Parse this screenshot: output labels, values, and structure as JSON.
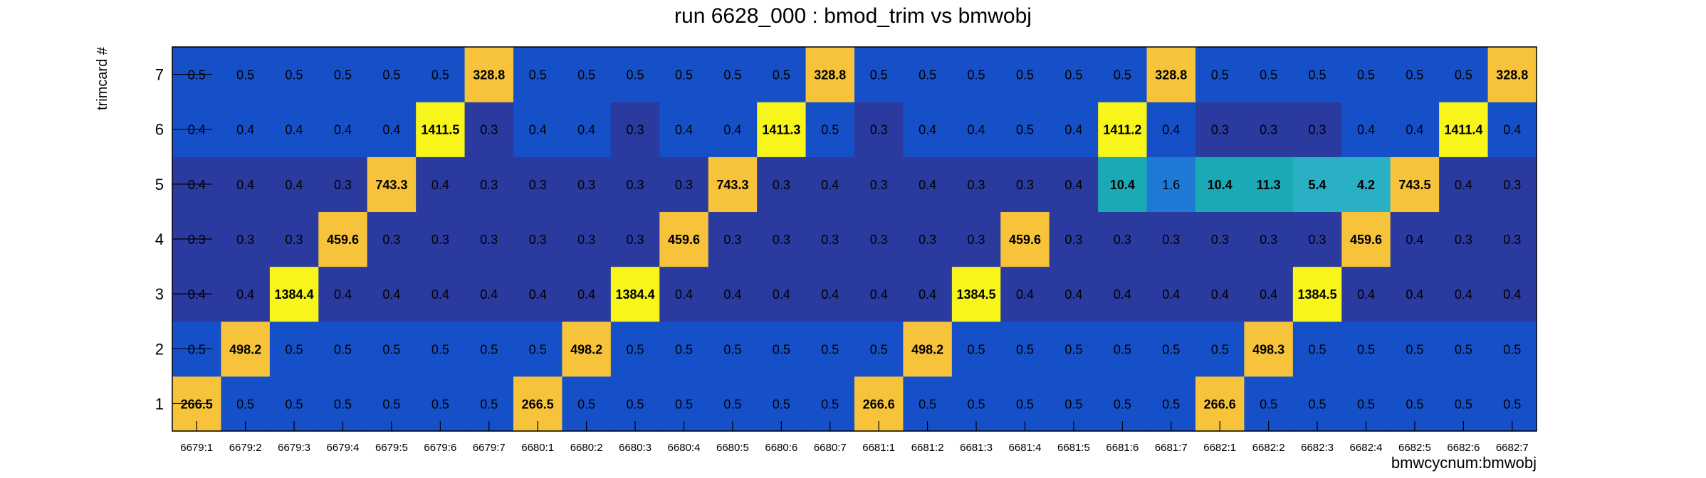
{
  "chart_data": {
    "type": "heatmap",
    "title": "run 6628_000 : bmod_trim vs bmwobj",
    "xlabel": "bmwcycnum:bmwobj",
    "ylabel": "trimcard #",
    "categories": [
      "6679:1",
      "6679:2",
      "6679:3",
      "6679:4",
      "6679:5",
      "6679:6",
      "6679:7",
      "6680:1",
      "6680:2",
      "6680:3",
      "6680:4",
      "6680:5",
      "6680:6",
      "6680:7",
      "6681:1",
      "6681:2",
      "6681:3",
      "6681:4",
      "6681:5",
      "6681:6",
      "6681:7",
      "6682:1",
      "6682:2",
      "6682:3",
      "6682:4",
      "6682:5",
      "6682:6",
      "6682:7"
    ],
    "y_categories": [
      "1",
      "2",
      "3",
      "4",
      "5",
      "6",
      "7"
    ],
    "values": [
      [
        "266.5",
        "0.5",
        "0.5",
        "0.5",
        "0.5",
        "0.5",
        "0.5",
        "266.5",
        "0.5",
        "0.5",
        "0.5",
        "0.5",
        "0.5",
        "0.5",
        "266.6",
        "0.5",
        "0.5",
        "0.5",
        "0.5",
        "0.5",
        "0.5",
        "266.6",
        "0.5",
        "0.5",
        "0.5",
        "0.5",
        "0.5",
        "0.5"
      ],
      [
        "0.5",
        "498.2",
        "0.5",
        "0.5",
        "0.5",
        "0.5",
        "0.5",
        "0.5",
        "498.2",
        "0.5",
        "0.5",
        "0.5",
        "0.5",
        "0.5",
        "0.5",
        "498.2",
        "0.5",
        "0.5",
        "0.5",
        "0.5",
        "0.5",
        "0.5",
        "498.3",
        "0.5",
        "0.5",
        "0.5",
        "0.5",
        "0.5"
      ],
      [
        "0.4",
        "0.4",
        "1384.4",
        "0.4",
        "0.4",
        "0.4",
        "0.4",
        "0.4",
        "0.4",
        "1384.4",
        "0.4",
        "0.4",
        "0.4",
        "0.4",
        "0.4",
        "0.4",
        "1384.5",
        "0.4",
        "0.4",
        "0.4",
        "0.4",
        "0.4",
        "0.4",
        "1384.5",
        "0.4",
        "0.4",
        "0.4",
        "0.4"
      ],
      [
        "0.3",
        "0.3",
        "0.3",
        "459.6",
        "0.3",
        "0.3",
        "0.3",
        "0.3",
        "0.3",
        "0.3",
        "459.6",
        "0.3",
        "0.3",
        "0.3",
        "0.3",
        "0.3",
        "0.3",
        "459.6",
        "0.3",
        "0.3",
        "0.3",
        "0.3",
        "0.3",
        "0.3",
        "459.6",
        "0.4",
        "0.3",
        "0.3"
      ],
      [
        "0.4",
        "0.4",
        "0.4",
        "0.3",
        "743.3",
        "0.4",
        "0.3",
        "0.3",
        "0.3",
        "0.3",
        "0.3",
        "743.3",
        "0.3",
        "0.4",
        "0.3",
        "0.4",
        "0.3",
        "0.3",
        "0.4",
        "10.4",
        "1.6",
        "10.4",
        "11.3",
        "5.4",
        "4.2",
        "743.5",
        "0.4",
        "0.3"
      ],
      [
        "0.4",
        "0.4",
        "0.4",
        "0.4",
        "0.4",
        "1411.5",
        "0.3",
        "0.4",
        "0.4",
        "0.3",
        "0.4",
        "0.4",
        "1411.3",
        "0.5",
        "0.3",
        "0.4",
        "0.4",
        "0.5",
        "0.4",
        "1411.2",
        "0.4",
        "0.3",
        "0.3",
        "0.3",
        "0.4",
        "0.4",
        "1411.4",
        "0.4"
      ],
      [
        "0.5",
        "0.5",
        "0.5",
        "0.5",
        "0.5",
        "0.5",
        "328.8",
        "0.5",
        "0.5",
        "0.5",
        "0.5",
        "0.5",
        "0.5",
        "328.8",
        "0.5",
        "0.5",
        "0.5",
        "0.5",
        "0.5",
        "0.5",
        "328.8",
        "0.5",
        "0.5",
        "0.5",
        "0.5",
        "0.5",
        "0.5",
        "328.8"
      ]
    ],
    "grid": false,
    "palette": {
      "low_dark": "#2a3a9e",
      "low_light": "#1650c9",
      "mid_blue": "#1e7ad6",
      "teal": "#1aaab5",
      "cyan_teal": "#2ab0c4",
      "orange": "#f7c33a",
      "yellow": "#f7f51a"
    }
  }
}
